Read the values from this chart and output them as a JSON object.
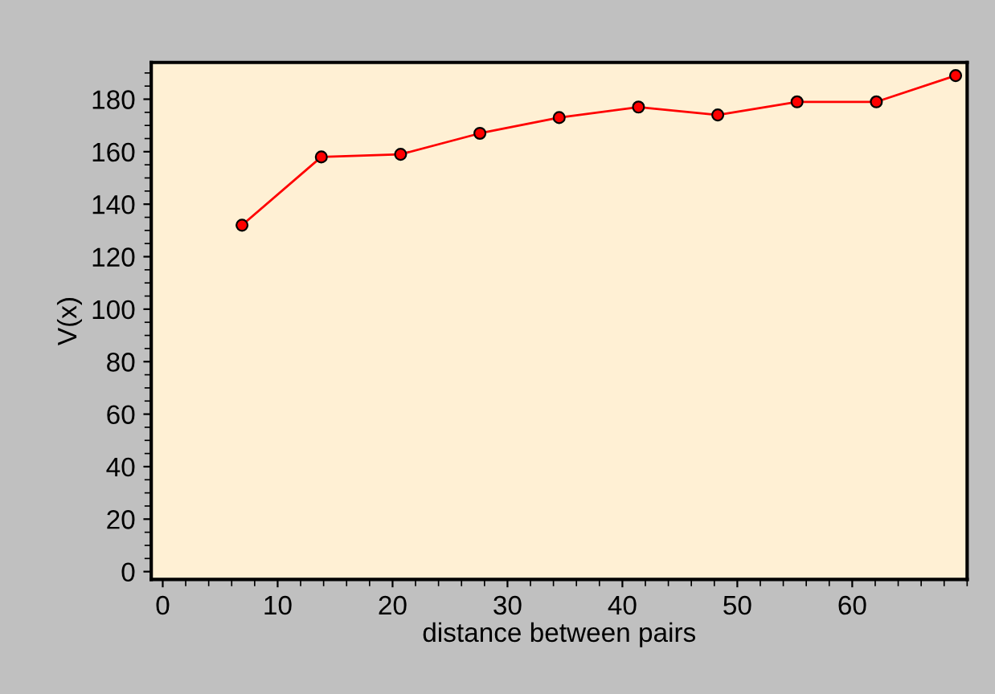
{
  "chart_data": {
    "type": "line",
    "xlabel": "distance between pairs",
    "ylabel": "V(x)",
    "x": [
      6.9,
      13.8,
      20.7,
      27.6,
      34.5,
      41.4,
      48.3,
      55.2,
      62.1,
      69.0
    ],
    "series": [
      {
        "color": "#ff0000",
        "values": [
          132,
          158,
          159,
          167,
          173,
          177,
          174,
          179,
          179,
          189
        ]
      }
    ],
    "marker": "circle",
    "line_style": "solid",
    "grid": false,
    "legend": false,
    "xlim": [
      -1,
      70
    ],
    "ylim": [
      -3,
      194
    ],
    "xticks": [
      0,
      10,
      20,
      30,
      40,
      50,
      60
    ],
    "yticks": [
      0,
      20,
      40,
      60,
      80,
      100,
      120,
      140,
      160,
      180
    ]
  }
}
